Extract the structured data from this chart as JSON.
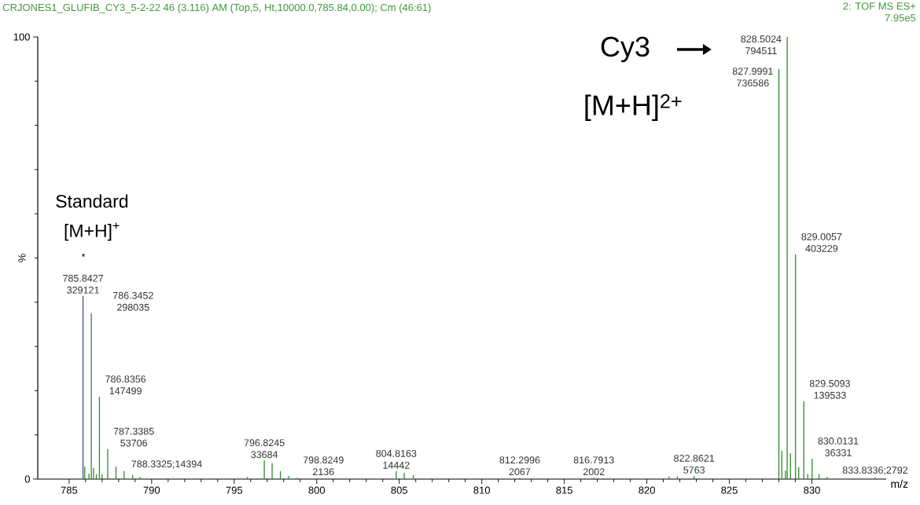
{
  "chart_data": {
    "type": "bar",
    "title": "CRJONES1_GLUFIB_CY3_5-2-22 46 (3.116) AM (Top,5, Ht,10000.0,785.84,0.00); Cm (46:61)",
    "xlabel": "m/z",
    "ylabel": "%",
    "x": [
      785.8427,
      785.95,
      786.2,
      786.3452,
      786.48,
      786.65,
      786.8356,
      787.0,
      787.3385,
      787.84,
      788.3325,
      788.85,
      789.3,
      795.8,
      796.8245,
      797.3,
      797.8,
      798.3,
      798.8249,
      804.8163,
      805.3,
      805.85,
      812.2996,
      816.7913,
      821.35,
      821.85,
      822.8621,
      827.9991,
      828.18,
      828.4,
      828.5024,
      828.7,
      829.0057,
      829.2,
      829.5093,
      829.75,
      830.0131,
      830.43,
      830.92,
      833.8336
    ],
    "values": [
      41.4,
      2.8,
      1.2,
      37.5,
      2.5,
      1.1,
      18.6,
      1.1,
      6.8,
      2.8,
      1.8,
      0.9,
      0.5,
      0.5,
      4.2,
      3.6,
      1.8,
      0.7,
      0.3,
      1.8,
      1.4,
      0.9,
      0.3,
      0.3,
      0.6,
      0.6,
      0.7,
      92.7,
      6.4,
      1.9,
      100,
      5.8,
      50.8,
      2.7,
      17.6,
      1.1,
      4.6,
      1.1,
      0.5,
      0.4
    ],
    "colors": [
      "#4a4a9c",
      "#2e8b2e",
      "#2e8b2e",
      "#2e8b2e",
      "#2e8b2e",
      "#2e8b2e",
      "#2e8b2e",
      "#2e8b2e",
      "#2e8b2e",
      "#2e8b2e",
      "#2e8b2e",
      "#2e8b2e",
      "#2e8b2e",
      "#2e8b2e",
      "#2e8b2e",
      "#2e8b2e",
      "#2e8b2e",
      "#2e8b2e",
      "#2e8b2e",
      "#2e8b2e",
      "#2e8b2e",
      "#2e8b2e",
      "#2e8b2e",
      "#2e8b2e",
      "#2e8b2e",
      "#2e8b2e",
      "#2e8b2e",
      "#2e8b2e",
      "#2e8b2e",
      "#2e8b2e",
      "#2e8b2e",
      "#2e8b2e",
      "#2e8b2e",
      "#2e8b2e",
      "#2e8b2e",
      "#2e8b2e",
      "#2e8b2e",
      "#2e8b2e",
      "#2e8b2e",
      "#2e8b2e"
    ],
    "xlim": [
      783.1,
      834.5
    ],
    "ylim": [
      0,
      100
    ],
    "xticks": [
      785,
      790,
      795,
      800,
      805,
      810,
      815,
      820,
      825,
      830
    ],
    "yticks": [
      0,
      100
    ],
    "annotations": [
      "2: TOF MS ES+",
      "7.95e5",
      "*",
      "Standard",
      "[M+H]$^{+}$",
      "Cy3",
      "[M+H]$^{2+}$",
      {
        "text": "785.8427 329121",
        "x": 785.8427,
        "y": 41.4
      },
      {
        "text": "786.3452 298035",
        "x": 786.3452,
        "y": 37.5
      },
      {
        "text": "786.8356 147499",
        "x": 786.8356,
        "y": 18.6
      },
      {
        "text": "787.3385 53706",
        "x": 787.3385,
        "y": 6.8
      },
      {
        "text": "788.3325;14394",
        "x": 788.3325,
        "y": 1.8
      },
      {
        "text": "796.8245 33684",
        "x": 796.8245,
        "y": 4.2
      },
      {
        "text": "798.8249 2136",
        "x": 798.8249,
        "y": 0.3
      },
      {
        "text": "804.8163 14442",
        "x": 804.8163,
        "y": 1.8
      },
      {
        "text": "812.2996 2067",
        "x": 812.2996,
        "y": 0.3
      },
      {
        "text": "816.7913 2002",
        "x": 816.7913,
        "y": 0.3
      },
      {
        "text": "822.8621 5763",
        "x": 822.8621,
        "y": 0.7
      },
      {
        "text": "827.9991 736586",
        "x": 827.9991,
        "y": 92.7
      },
      {
        "text": "828.5024 794511",
        "x": 828.5024,
        "y": 100
      },
      {
        "text": "829.0057 403229",
        "x": 829.0057,
        "y": 50.8
      },
      {
        "text": "829.5093 139533",
        "x": 829.5093,
        "y": 17.6
      },
      {
        "text": "830.0131 36331",
        "x": 830.0131,
        "y": 4.6
      },
      {
        "text": "833.8336;2792",
        "x": 833.8336,
        "y": 0.4
      }
    ]
  }
}
